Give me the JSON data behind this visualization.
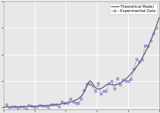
{
  "legend_labels": [
    "Theoretical Model",
    "Experimental Data"
  ],
  "theory_color": "#444444",
  "exp_color": "#6666bb",
  "background_color": "#e8e8e8",
  "grid_color": "#ffffff",
  "figsize": [
    2.26,
    1.59
  ],
  "dpi": 100,
  "xlim": [
    0,
    1
  ],
  "ylim": [
    0,
    1
  ]
}
